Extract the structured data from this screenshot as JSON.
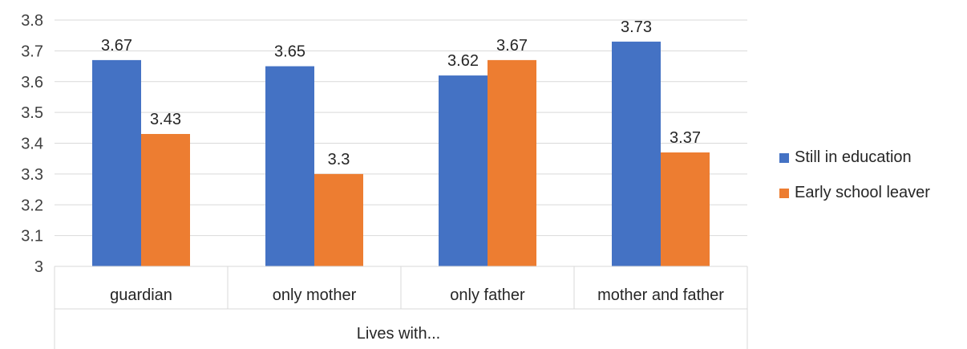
{
  "chart_data": {
    "type": "bar",
    "categories": [
      "guardian",
      "only mother",
      "only father",
      "mother and father"
    ],
    "group_label": "Lives with...",
    "series": [
      {
        "name": "Still in education",
        "values": [
          3.67,
          3.65,
          3.62,
          3.73
        ],
        "color": "#4472C4"
      },
      {
        "name": "Early school leaver",
        "values": [
          3.43,
          3.3,
          3.67,
          3.37
        ],
        "color": "#ED7D31"
      }
    ],
    "ylim": [
      3,
      3.8
    ],
    "yticks": [
      "3",
      "3.1",
      "3.2",
      "3.3",
      "3.4",
      "3.5",
      "3.6",
      "3.7",
      "3.8"
    ],
    "grid": true,
    "legend_position": "right"
  }
}
